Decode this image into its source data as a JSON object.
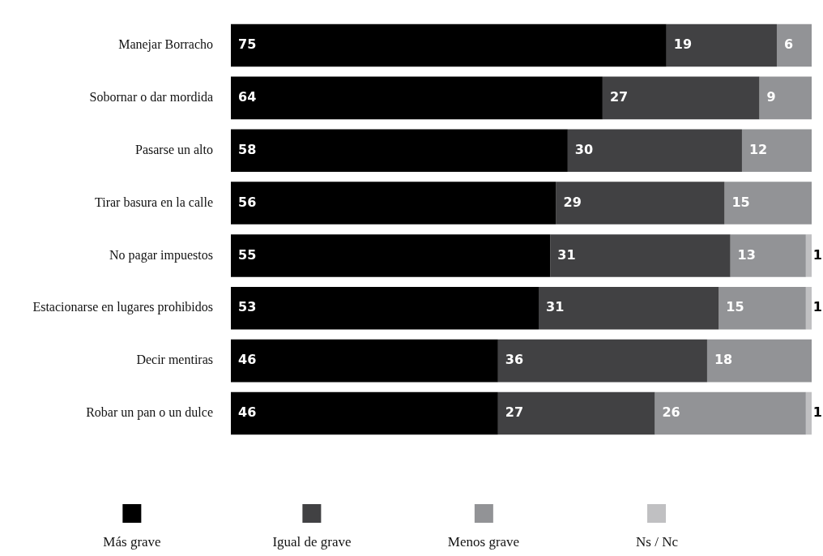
{
  "chart_data": {
    "type": "bar",
    "orientation": "horizontal",
    "stacked": true,
    "data_labels": true,
    "legend": "bottom",
    "categories": [
      "Manejar Borracho",
      "Sobornar o dar mordida",
      "Pasarse un alto",
      "Tirar basura en la calle",
      "No pagar impuestos",
      "Estacionarse en lugares prohibidos",
      "Decir mentiras",
      "Robar un pan o un dulce"
    ],
    "series": [
      {
        "name": "Más grave",
        "color": "#000000",
        "values": [
          75,
          64,
          58,
          56,
          55,
          53,
          46,
          46
        ]
      },
      {
        "name": "Igual de grave",
        "color": "#414143",
        "values": [
          19,
          27,
          30,
          29,
          31,
          31,
          36,
          27
        ]
      },
      {
        "name": "Menos grave",
        "color": "#929396",
        "values": [
          6,
          9,
          12,
          15,
          13,
          15,
          18,
          26
        ]
      },
      {
        "name": "Ns / Nc",
        "color": "#c0c0c2",
        "values": [
          null,
          null,
          null,
          null,
          1,
          1,
          null,
          1
        ]
      }
    ]
  }
}
